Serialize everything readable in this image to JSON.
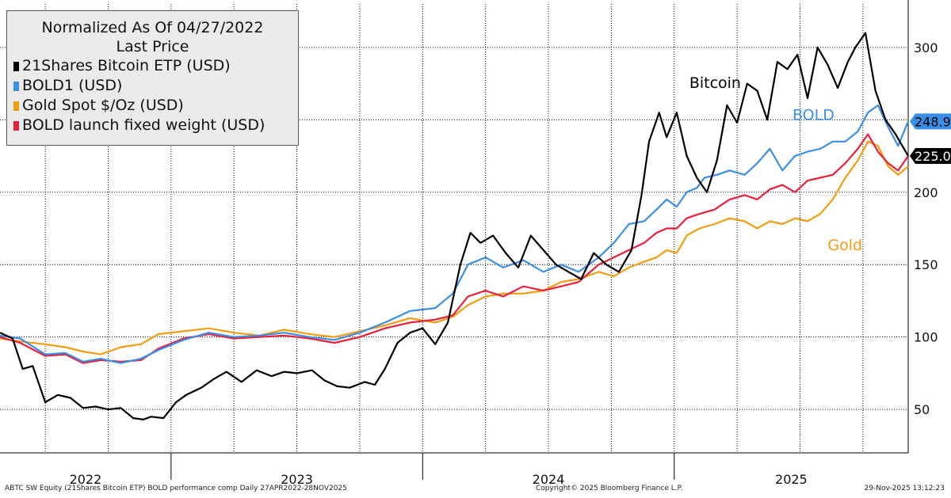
{
  "legend": {
    "title": "Normalized As Of 04/27/2022",
    "subtitle": "Last Price",
    "items": [
      {
        "label": "21Shares Bitcoin ETP (USD)",
        "color": "#000000"
      },
      {
        "label": "BOLD1 (USD)",
        "color": "#3b8ee8"
      },
      {
        "label": "Gold Spot $/Oz (USD)",
        "color": "#f39c12"
      },
      {
        "label": "BOLD launch fixed weight (USD)",
        "color": "#e8203a"
      }
    ]
  },
  "footer": {
    "left": "ABTC SW Equity (21Shares Bitcoin ETP) BOLD performance comp Daily 27APR2022-28NOV2025",
    "center": "Copyright© 2025 Bloomberg Finance L.P.",
    "right": "29-Nov-2025 13:12:23"
  },
  "chart_data": {
    "type": "line",
    "title": "Normalized As Of 04/27/2022",
    "ylabel": "",
    "xlabel": "",
    "ylim": [
      20,
      330
    ],
    "yticks": [
      50,
      100,
      150,
      200,
      250,
      300
    ],
    "xlim": [
      2022.32,
      2025.93
    ],
    "x_period_labels": [
      {
        "label": "2022",
        "start": 2022.32,
        "end": 2023.0
      },
      {
        "label": "2023",
        "start": 2023.0,
        "end": 2024.0
      },
      {
        "label": "2024",
        "start": 2024.0,
        "end": 2025.0
      },
      {
        "label": "2025",
        "start": 2025.0,
        "end": 2025.93
      }
    ],
    "grid": true,
    "series": [
      {
        "name": "21Shares Bitcoin ETP (USD)",
        "color": "#000000",
        "x": [
          2022.32,
          2022.37,
          2022.41,
          2022.45,
          2022.5,
          2022.55,
          2022.6,
          2022.65,
          2022.7,
          2022.75,
          2022.8,
          2022.85,
          2022.89,
          2022.92,
          2022.97,
          2023.02,
          2023.06,
          2023.12,
          2023.17,
          2023.22,
          2023.28,
          2023.34,
          2023.4,
          2023.45,
          2023.5,
          2023.56,
          2023.61,
          2023.66,
          2023.71,
          2023.77,
          2023.81,
          2023.85,
          2023.9,
          2023.95,
          2024.0,
          2024.05,
          2024.1,
          2024.15,
          2024.19,
          2024.23,
          2024.28,
          2024.33,
          2024.38,
          2024.43,
          2024.48,
          2024.53,
          2024.58,
          2024.63,
          2024.68,
          2024.73,
          2024.78,
          2024.83,
          2024.87,
          2024.9,
          2024.94,
          2024.97,
          2025.01,
          2025.05,
          2025.09,
          2025.13,
          2025.17,
          2025.21,
          2025.25,
          2025.29,
          2025.33,
          2025.37,
          2025.41,
          2025.45,
          2025.49,
          2025.53,
          2025.57,
          2025.61,
          2025.65,
          2025.69,
          2025.72,
          2025.76,
          2025.8,
          2025.84,
          2025.88,
          2025.93
        ],
        "values": [
          103,
          99,
          78,
          80,
          55,
          60,
          58,
          51,
          52,
          50,
          51,
          44,
          43,
          45,
          44,
          55,
          60,
          65,
          71,
          76,
          69,
          77,
          73,
          76,
          75,
          77,
          70,
          66,
          65,
          69,
          67,
          78,
          96,
          103,
          106,
          95,
          110,
          150,
          172,
          165,
          170,
          158,
          148,
          170,
          160,
          150,
          145,
          140,
          158,
          150,
          145,
          160,
          198,
          235,
          255,
          238,
          255,
          225,
          210,
          200,
          222,
          260,
          248,
          275,
          270,
          250,
          290,
          285,
          295,
          265,
          300,
          288,
          272,
          290,
          300,
          310,
          270,
          250,
          240,
          225
        ]
      },
      {
        "name": "BOLD1 (USD)",
        "color": "#3b8ee8",
        "x": [
          2022.32,
          2022.4,
          2022.5,
          2022.58,
          2022.65,
          2022.72,
          2022.8,
          2022.88,
          2022.95,
          2023.05,
          2023.15,
          2023.25,
          2023.35,
          2023.45,
          2023.55,
          2023.65,
          2023.75,
          2023.85,
          2023.95,
          2024.05,
          2024.12,
          2024.18,
          2024.25,
          2024.32,
          2024.4,
          2024.48,
          2024.55,
          2024.62,
          2024.7,
          2024.76,
          2024.82,
          2024.88,
          2024.93,
          2024.97,
          2025.01,
          2025.05,
          2025.09,
          2025.12,
          2025.17,
          2025.22,
          2025.28,
          2025.33,
          2025.38,
          2025.43,
          2025.48,
          2025.53,
          2025.58,
          2025.63,
          2025.68,
          2025.73,
          2025.77,
          2025.81,
          2025.85,
          2025.89,
          2025.93
        ],
        "values": [
          101,
          99,
          88,
          89,
          83,
          85,
          82,
          85,
          91,
          98,
          103,
          100,
          101,
          103,
          100,
          98,
          103,
          110,
          118,
          120,
          130,
          150,
          155,
          148,
          153,
          145,
          150,
          145,
          155,
          165,
          178,
          180,
          188,
          195,
          190,
          200,
          203,
          210,
          212,
          215,
          212,
          220,
          230,
          215,
          225,
          228,
          230,
          235,
          235,
          242,
          255,
          260,
          245,
          232,
          249
        ]
      },
      {
        "name": "Gold Spot $/Oz (USD)",
        "color": "#f39c12",
        "x": [
          2022.32,
          2022.4,
          2022.5,
          2022.58,
          2022.65,
          2022.72,
          2022.8,
          2022.88,
          2022.95,
          2023.05,
          2023.15,
          2023.25,
          2023.35,
          2023.45,
          2023.55,
          2023.65,
          2023.75,
          2023.85,
          2023.95,
          2024.05,
          2024.12,
          2024.18,
          2024.25,
          2024.32,
          2024.4,
          2024.48,
          2024.55,
          2024.62,
          2024.7,
          2024.76,
          2024.82,
          2024.88,
          2024.93,
          2024.97,
          2025.01,
          2025.05,
          2025.1,
          2025.16,
          2025.22,
          2025.28,
          2025.33,
          2025.38,
          2025.43,
          2025.48,
          2025.53,
          2025.58,
          2025.63,
          2025.68,
          2025.73,
          2025.77,
          2025.81,
          2025.85,
          2025.89,
          2025.93
        ],
        "values": [
          99,
          97,
          95,
          93,
          90,
          88,
          93,
          95,
          102,
          104,
          106,
          103,
          101,
          105,
          102,
          100,
          104,
          108,
          113,
          110,
          114,
          122,
          128,
          130,
          130,
          132,
          138,
          140,
          145,
          142,
          148,
          152,
          155,
          160,
          158,
          170,
          175,
          178,
          182,
          180,
          175,
          180,
          178,
          182,
          180,
          185,
          195,
          210,
          222,
          235,
          232,
          218,
          212,
          218
        ]
      },
      {
        "name": "BOLD launch fixed weight (USD)",
        "color": "#e8203a",
        "x": [
          2022.32,
          2022.4,
          2022.5,
          2022.58,
          2022.65,
          2022.72,
          2022.8,
          2022.88,
          2022.95,
          2023.05,
          2023.15,
          2023.25,
          2023.35,
          2023.45,
          2023.55,
          2023.65,
          2023.75,
          2023.85,
          2023.95,
          2024.05,
          2024.12,
          2024.18,
          2024.25,
          2024.32,
          2024.4,
          2024.48,
          2024.55,
          2024.62,
          2024.7,
          2024.76,
          2024.82,
          2024.88,
          2024.93,
          2024.97,
          2025.01,
          2025.05,
          2025.1,
          2025.16,
          2025.22,
          2025.28,
          2025.33,
          2025.38,
          2025.43,
          2025.48,
          2025.53,
          2025.58,
          2025.63,
          2025.68,
          2025.73,
          2025.77,
          2025.81,
          2025.85,
          2025.89,
          2025.93
        ],
        "values": [
          100,
          96,
          87,
          88,
          82,
          84,
          83,
          84,
          92,
          99,
          102,
          99,
          100,
          101,
          99,
          96,
          100,
          106,
          110,
          112,
          115,
          128,
          132,
          128,
          135,
          132,
          135,
          138,
          150,
          155,
          160,
          165,
          172,
          175,
          175,
          182,
          185,
          188,
          195,
          198,
          195,
          202,
          205,
          200,
          208,
          210,
          212,
          220,
          230,
          240,
          228,
          220,
          215,
          225
        ]
      }
    ],
    "last_value_labels": [
      {
        "series": "BOLD1 (USD)",
        "value": "248.9",
        "bg": "#3b8ee8",
        "fg": "#000000"
      },
      {
        "series": "21Shares Bitcoin ETP (USD)",
        "value": "225.0",
        "bg": "#000000",
        "fg": "#ffffff"
      }
    ],
    "annotations": [
      {
        "text": "Bitcoin",
        "color": "#000000",
        "x": 2025.06,
        "y": 272
      },
      {
        "text": "BOLD",
        "color": "#3b8ee8",
        "x": 2025.47,
        "y": 250
      },
      {
        "text": "Gold",
        "color": "#f39c12",
        "x": 2025.61,
        "y": 160
      }
    ]
  }
}
